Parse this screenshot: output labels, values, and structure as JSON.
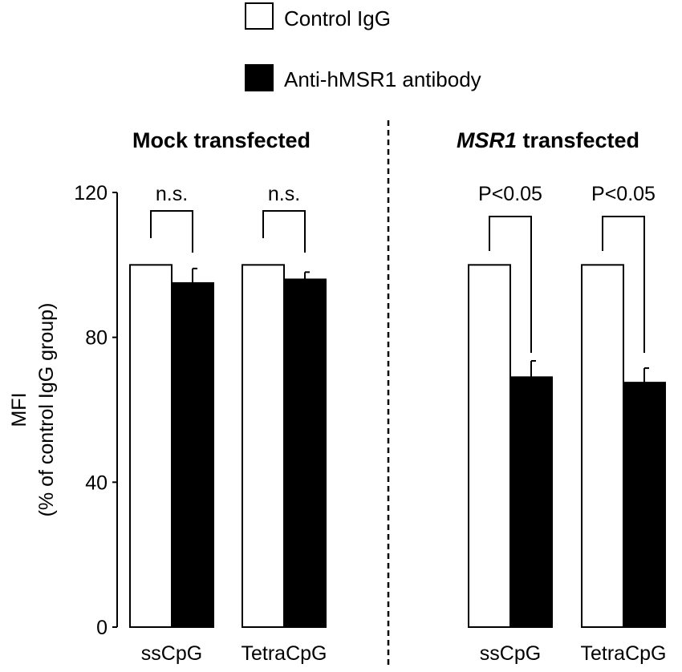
{
  "chart_data": {
    "type": "bar",
    "ylabel_line1": "MFI",
    "ylabel_line2": "(% of control IgG group)",
    "ylim": [
      0,
      120
    ],
    "yticks": [
      0,
      40,
      80,
      120
    ],
    "legend": {
      "placement": "top",
      "entries": [
        {
          "name": "Control IgG",
          "color": "#ffffff"
        },
        {
          "name": "Anti-hMSR1 antibody",
          "color": "#000000"
        }
      ]
    },
    "panels": [
      {
        "title": "Mock transfected",
        "title_italic_part": "",
        "title_rest": "Mock transfected",
        "categories": [
          "ssCpG",
          "TetraCpG"
        ],
        "series": [
          {
            "name": "Control IgG",
            "values": [
              100,
              100
            ],
            "errors": [
              0,
              0
            ]
          },
          {
            "name": "Anti-hMSR1 antibody",
            "values": [
              95,
              96
            ],
            "errors": [
              4,
              2
            ]
          }
        ],
        "significance": [
          "n.s.",
          "n.s."
        ]
      },
      {
        "title": "MSR1 transfected",
        "title_italic_part": "MSR1",
        "title_rest": " transfected",
        "categories": [
          "ssCpG",
          "TetraCpG"
        ],
        "series": [
          {
            "name": "Control IgG",
            "values": [
              100,
              100
            ],
            "errors": [
              0,
              0
            ]
          },
          {
            "name": "Anti-hMSR1 antibody",
            "values": [
              69,
              67.5
            ],
            "errors": [
              4.5,
              4
            ]
          }
        ],
        "significance": [
          "P<0.05",
          "P<0.05"
        ]
      }
    ]
  }
}
